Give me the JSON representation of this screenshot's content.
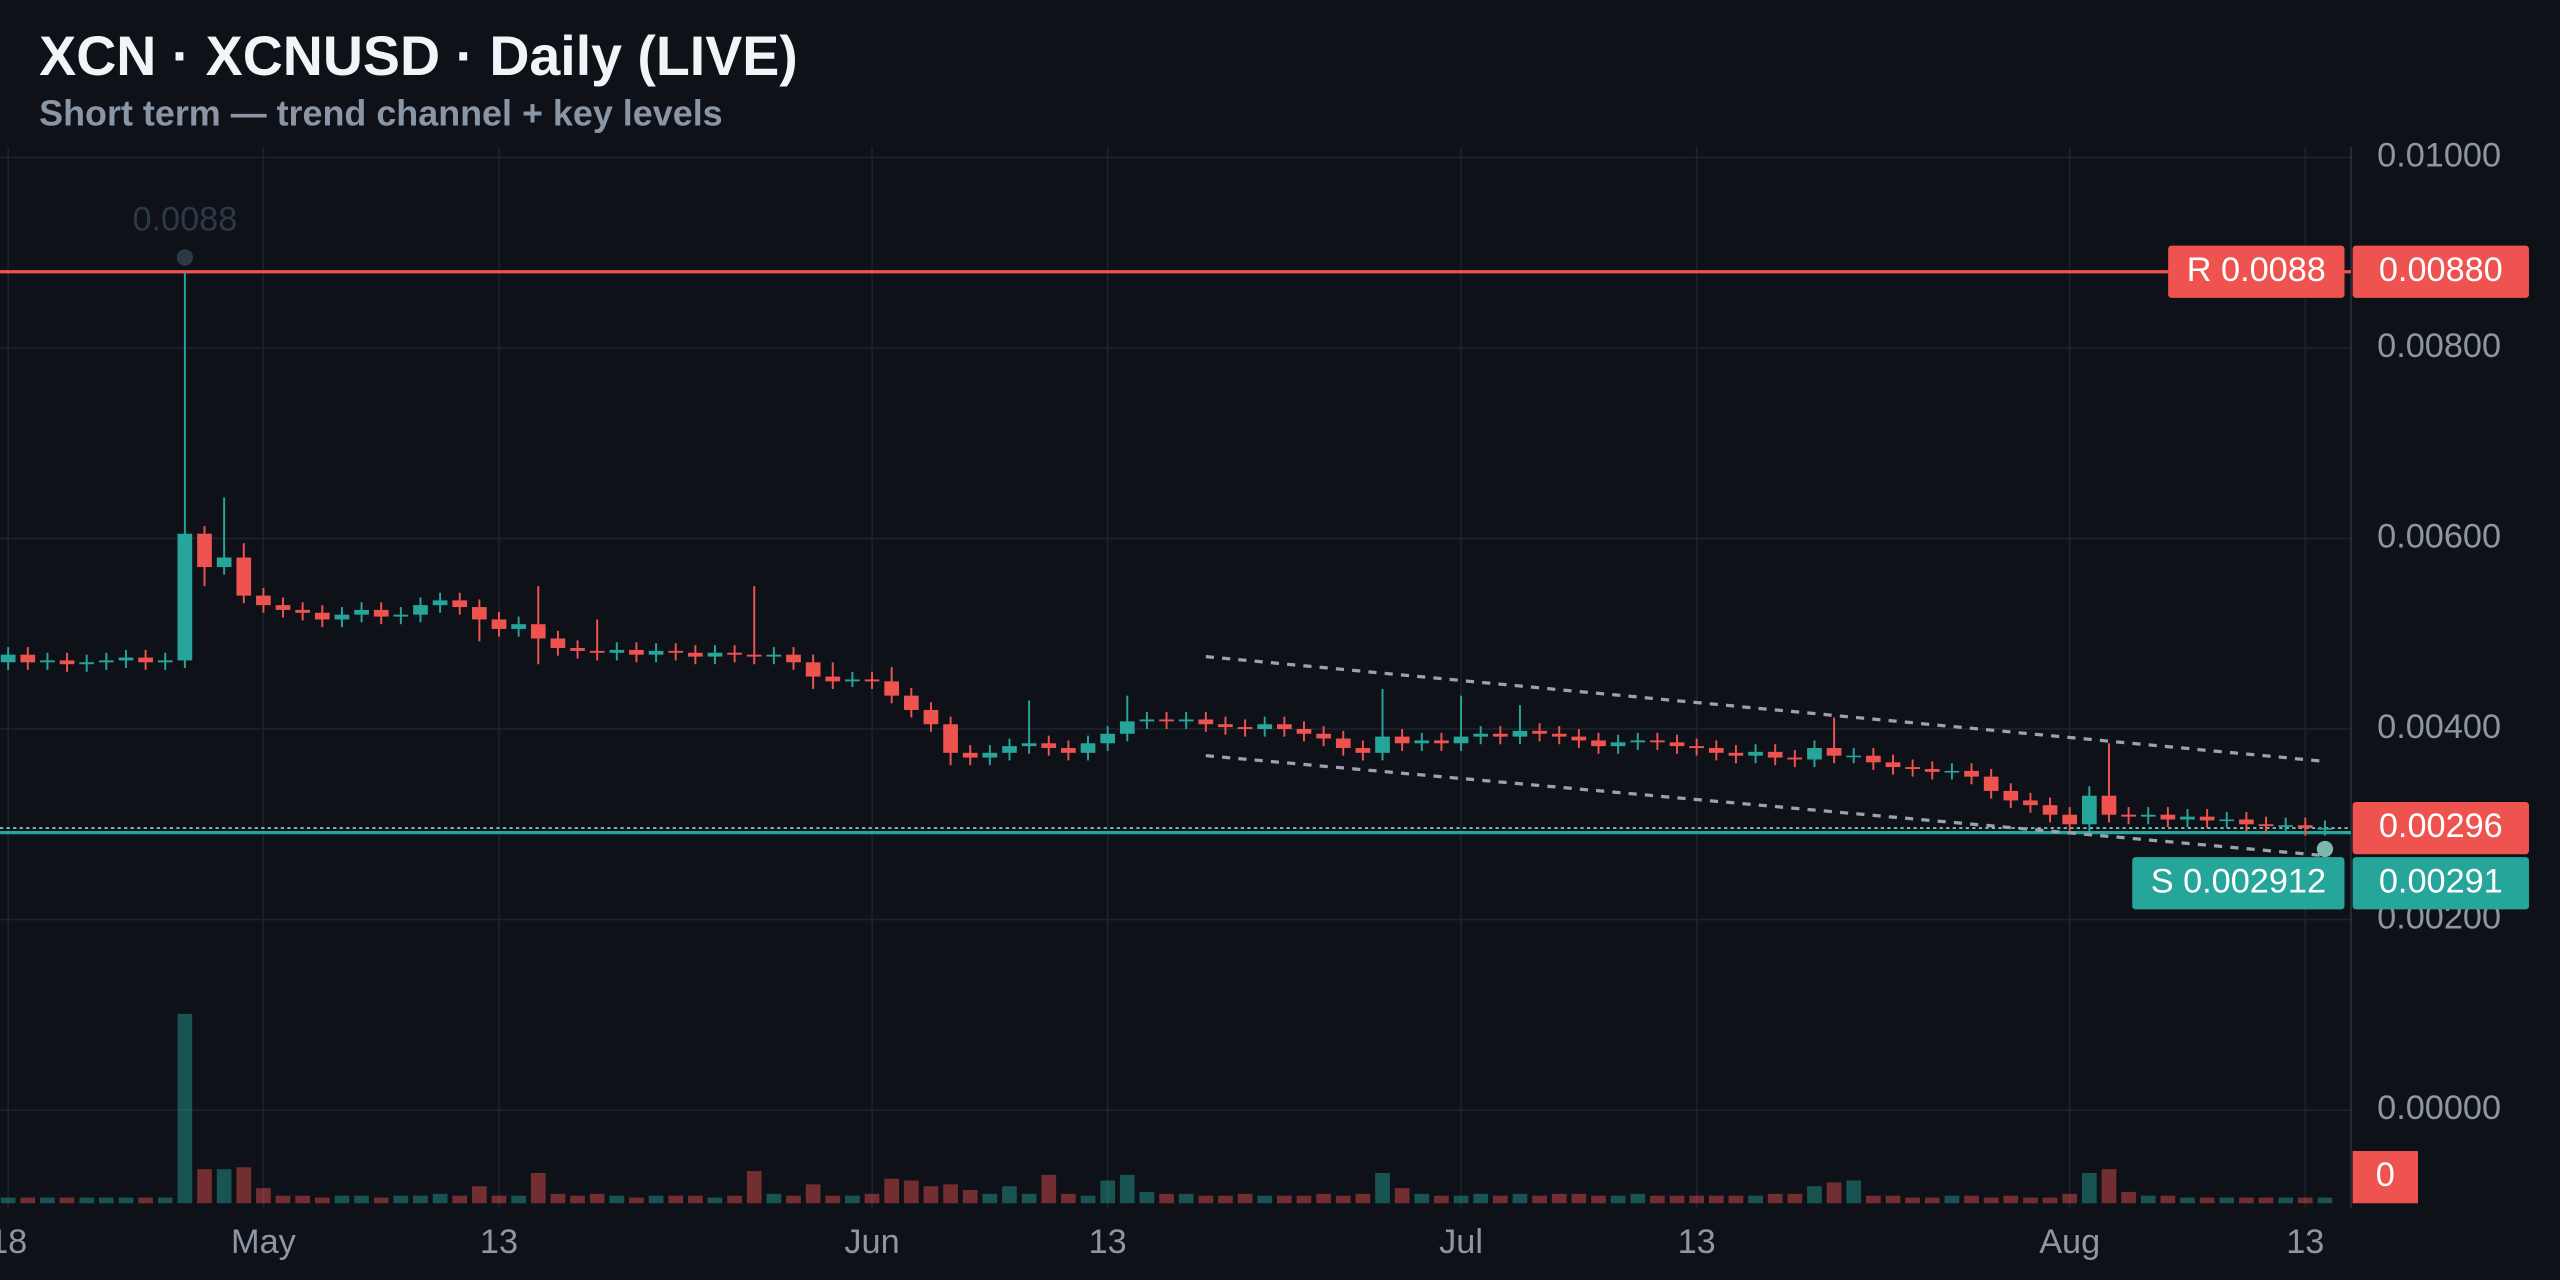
{
  "chart_data": {
    "type": "candlestick",
    "title": "XCN · XCNUSD · Daily (LIVE)",
    "subtitle": "Short term — trend channel + key levels",
    "x": [
      "04-18",
      "04-19",
      "04-20",
      "04-21",
      "04-22",
      "04-23",
      "04-24",
      "04-25",
      "04-26",
      "04-27",
      "04-28",
      "04-29",
      "04-30",
      "05-01",
      "05-02",
      "05-03",
      "05-04",
      "05-05",
      "05-06",
      "05-07",
      "05-08",
      "05-09",
      "05-10",
      "05-11",
      "05-12",
      "05-13",
      "05-14",
      "05-15",
      "05-16",
      "05-17",
      "05-18",
      "05-19",
      "05-20",
      "05-21",
      "05-22",
      "05-23",
      "05-24",
      "05-25",
      "05-26",
      "05-27",
      "05-28",
      "05-29",
      "05-30",
      "05-31",
      "06-01",
      "06-02",
      "06-03",
      "06-04",
      "06-05",
      "06-06",
      "06-07",
      "06-08",
      "06-09",
      "06-10",
      "06-11",
      "06-12",
      "06-13",
      "06-14",
      "06-15",
      "06-16",
      "06-17",
      "06-18",
      "06-19",
      "06-20",
      "06-21",
      "06-22",
      "06-23",
      "06-24",
      "06-25",
      "06-26",
      "06-27",
      "06-28",
      "06-29",
      "06-30",
      "07-01",
      "07-02",
      "07-03",
      "07-04",
      "07-05",
      "07-06",
      "07-07",
      "07-08",
      "07-09",
      "07-10",
      "07-11",
      "07-12",
      "07-13",
      "07-14",
      "07-15",
      "07-16",
      "07-17",
      "07-18",
      "07-19",
      "07-20",
      "07-21",
      "07-22",
      "07-23",
      "07-24",
      "07-25",
      "07-26",
      "07-27",
      "07-28",
      "07-29",
      "07-30",
      "07-31",
      "08-01",
      "08-02",
      "08-03",
      "08-04",
      "08-05",
      "08-06",
      "08-07",
      "08-08",
      "08-09",
      "08-10",
      "08-11",
      "08-12",
      "08-13",
      "08-14"
    ],
    "open": [
      0.0047,
      0.00478,
      0.0047,
      0.00472,
      0.00468,
      0.0047,
      0.00472,
      0.00475,
      0.0047,
      0.00472,
      0.00605,
      0.0057,
      0.0058,
      0.0054,
      0.0053,
      0.00525,
      0.00522,
      0.00515,
      0.0052,
      0.00525,
      0.00518,
      0.0052,
      0.0053,
      0.00535,
      0.00528,
      0.00515,
      0.00505,
      0.0051,
      0.00495,
      0.00485,
      0.00482,
      0.0048,
      0.00483,
      0.00478,
      0.00482,
      0.0048,
      0.00476,
      0.0048,
      0.00478,
      0.00476,
      0.00478,
      0.0047,
      0.00455,
      0.0045,
      0.00452,
      0.0045,
      0.00435,
      0.0042,
      0.00405,
      0.00375,
      0.0037,
      0.00375,
      0.00382,
      0.00385,
      0.0038,
      0.00375,
      0.00385,
      0.00395,
      0.00408,
      0.0041,
      0.00408,
      0.0041,
      0.00405,
      0.00402,
      0.004,
      0.00405,
      0.004,
      0.00395,
      0.0039,
      0.0038,
      0.00375,
      0.00392,
      0.00385,
      0.00388,
      0.00385,
      0.00392,
      0.00395,
      0.00392,
      0.00398,
      0.00395,
      0.00392,
      0.00388,
      0.00382,
      0.00386,
      0.00388,
      0.00386,
      0.00382,
      0.0038,
      0.00375,
      0.00372,
      0.00376,
      0.0037,
      0.00368,
      0.0038,
      0.00372,
      0.00372,
      0.00365,
      0.0036,
      0.00358,
      0.00355,
      0.00356,
      0.0035,
      0.00335,
      0.00325,
      0.0032,
      0.0031,
      0.003,
      0.0033,
      0.0031,
      0.00308,
      0.0031,
      0.00305,
      0.00308,
      0.00304,
      0.00305,
      0.003,
      0.00298,
      0.00299,
      0.00296
    ],
    "high": [
      0.00486,
      0.00486,
      0.0048,
      0.0048,
      0.00478,
      0.0048,
      0.00483,
      0.00483,
      0.0048,
      0.0088,
      0.00613,
      0.00643,
      0.00595,
      0.00548,
      0.00538,
      0.00533,
      0.0053,
      0.00528,
      0.00533,
      0.00533,
      0.00528,
      0.00538,
      0.00543,
      0.00543,
      0.00536,
      0.00523,
      0.00518,
      0.0055,
      0.00503,
      0.00493,
      0.00515,
      0.00491,
      0.00491,
      0.0049,
      0.0049,
      0.00488,
      0.00488,
      0.00488,
      0.0055,
      0.00486,
      0.00486,
      0.00478,
      0.0047,
      0.0046,
      0.0046,
      0.00465,
      0.00443,
      0.00428,
      0.00413,
      0.00383,
      0.00383,
      0.0039,
      0.0043,
      0.00393,
      0.00388,
      0.00393,
      0.00403,
      0.00435,
      0.00418,
      0.00418,
      0.00418,
      0.00418,
      0.00413,
      0.0041,
      0.00413,
      0.00413,
      0.00408,
      0.00403,
      0.00398,
      0.00388,
      0.00442,
      0.004,
      0.00396,
      0.00396,
      0.00435,
      0.00403,
      0.00403,
      0.00425,
      0.00406,
      0.00403,
      0.004,
      0.00396,
      0.00394,
      0.00396,
      0.00396,
      0.00394,
      0.0039,
      0.00388,
      0.00383,
      0.00384,
      0.00384,
      0.00378,
      0.00388,
      0.00412,
      0.0038,
      0.0038,
      0.00373,
      0.00368,
      0.00366,
      0.00364,
      0.00364,
      0.00358,
      0.00343,
      0.00333,
      0.00328,
      0.00318,
      0.0034,
      0.00385,
      0.00318,
      0.00318,
      0.00318,
      0.00316,
      0.00316,
      0.00313,
      0.00313,
      0.00308,
      0.00307,
      0.00307,
      0.00304
    ],
    "low": [
      0.00462,
      0.00462,
      0.00462,
      0.0046,
      0.0046,
      0.00462,
      0.00464,
      0.00462,
      0.00462,
      0.00464,
      0.0055,
      0.00562,
      0.00532,
      0.00522,
      0.00517,
      0.00514,
      0.00507,
      0.00507,
      0.00512,
      0.0051,
      0.0051,
      0.00512,
      0.00522,
      0.0052,
      0.00492,
      0.00497,
      0.00497,
      0.00468,
      0.00477,
      0.00474,
      0.00472,
      0.00472,
      0.0047,
      0.0047,
      0.00472,
      0.00468,
      0.00468,
      0.0047,
      0.00468,
      0.00468,
      0.00462,
      0.00442,
      0.00442,
      0.00444,
      0.00442,
      0.00427,
      0.00412,
      0.00397,
      0.00362,
      0.00362,
      0.00362,
      0.00367,
      0.00374,
      0.00372,
      0.00367,
      0.00367,
      0.00377,
      0.00387,
      0.004,
      0.004,
      0.004,
      0.00397,
      0.00394,
      0.00392,
      0.00392,
      0.00392,
      0.00387,
      0.00382,
      0.00372,
      0.00367,
      0.00367,
      0.00377,
      0.00377,
      0.00377,
      0.00377,
      0.00384,
      0.00384,
      0.00384,
      0.00387,
      0.00384,
      0.0038,
      0.00374,
      0.00374,
      0.00378,
      0.00378,
      0.00374,
      0.00372,
      0.00367,
      0.00364,
      0.00364,
      0.00362,
      0.0036,
      0.0036,
      0.00364,
      0.00364,
      0.00357,
      0.00352,
      0.0035,
      0.00347,
      0.00347,
      0.00342,
      0.00327,
      0.00317,
      0.00312,
      0.00302,
      0.00292,
      0.00292,
      0.00302,
      0.003,
      0.003,
      0.00297,
      0.00297,
      0.00296,
      0.00296,
      0.00292,
      0.0029,
      0.0029,
      0.00288,
      0.00288
    ],
    "close": [
      0.00478,
      0.0047,
      0.00472,
      0.00468,
      0.0047,
      0.00472,
      0.00475,
      0.0047,
      0.00472,
      0.00605,
      0.0057,
      0.0058,
      0.0054,
      0.0053,
      0.00525,
      0.00522,
      0.00515,
      0.0052,
      0.00525,
      0.00518,
      0.0052,
      0.0053,
      0.00535,
      0.00528,
      0.00515,
      0.00505,
      0.0051,
      0.00495,
      0.00485,
      0.00482,
      0.0048,
      0.00483,
      0.00478,
      0.00482,
      0.0048,
      0.00476,
      0.0048,
      0.00478,
      0.00476,
      0.00478,
      0.0047,
      0.00455,
      0.0045,
      0.00452,
      0.0045,
      0.00435,
      0.0042,
      0.00405,
      0.00375,
      0.0037,
      0.00375,
      0.00382,
      0.00385,
      0.0038,
      0.00375,
      0.00385,
      0.00395,
      0.00408,
      0.0041,
      0.00408,
      0.0041,
      0.00405,
      0.00402,
      0.004,
      0.00405,
      0.004,
      0.00395,
      0.0039,
      0.0038,
      0.00375,
      0.00392,
      0.00385,
      0.00388,
      0.00385,
      0.00392,
      0.00395,
      0.00392,
      0.00398,
      0.00395,
      0.00392,
      0.00388,
      0.00382,
      0.00386,
      0.00388,
      0.00386,
      0.00382,
      0.0038,
      0.00375,
      0.00372,
      0.00376,
      0.0037,
      0.00368,
      0.0038,
      0.00372,
      0.00372,
      0.00365,
      0.0036,
      0.00358,
      0.00355,
      0.00356,
      0.0035,
      0.00335,
      0.00325,
      0.0032,
      0.0031,
      0.003,
      0.0033,
      0.0031,
      0.00308,
      0.0031,
      0.00305,
      0.00308,
      0.00304,
      0.00305,
      0.003,
      0.00298,
      0.00299,
      0.00296,
      0.00296
    ],
    "volume": [
      3,
      3,
      3,
      3,
      3,
      3,
      3,
      3,
      3,
      100,
      18,
      18,
      19,
      8,
      4,
      4,
      3,
      4,
      4,
      3,
      4,
      4,
      5,
      4,
      9,
      4,
      4,
      16,
      5,
      4,
      5,
      4,
      3,
      4,
      4,
      4,
      3,
      4,
      17,
      5,
      4,
      10,
      4,
      4,
      5,
      13,
      12,
      9,
      10,
      7,
      5,
      9,
      5,
      15,
      5,
      4,
      12,
      15,
      6,
      5,
      5,
      4,
      4,
      5,
      4,
      4,
      4,
      5,
      4,
      5,
      16,
      8,
      5,
      4,
      4,
      5,
      4,
      5,
      4,
      5,
      5,
      4,
      4,
      5,
      4,
      4,
      4,
      4,
      4,
      4,
      5,
      5,
      9,
      11,
      12,
      4,
      4,
      3,
      3,
      4,
      4,
      3,
      4,
      3,
      3,
      5,
      16,
      18,
      6,
      4,
      4,
      3,
      3,
      3,
      3,
      3,
      3,
      3,
      3
    ],
    "volume_ylim": [
      0,
      100
    ],
    "volume_label": "0",
    "up_color": "#26a69a",
    "down_color": "#ef5350",
    "ylim": [
      -0.00103,
      0.01011
    ],
    "yticks": [
      {
        "value": 0.01,
        "label": "0.01000"
      },
      {
        "value": 0.008,
        "label": "0.00800"
      },
      {
        "value": 0.006,
        "label": "0.00600"
      },
      {
        "value": 0.004,
        "label": "0.00400"
      },
      {
        "value": 0.002,
        "label": "0.00200"
      },
      {
        "value": 0,
        "label": "0.00000"
      }
    ],
    "xticks": [
      {
        "value": "04-18",
        "label": "18"
      },
      {
        "value": "05-01",
        "label": "May"
      },
      {
        "value": "05-13",
        "label": "13"
      },
      {
        "value": "06-01",
        "label": "Jun"
      },
      {
        "value": "06-13",
        "label": "13"
      },
      {
        "value": "07-01",
        "label": "Jul"
      },
      {
        "value": "07-13",
        "label": "13"
      },
      {
        "value": "08-01",
        "label": "Aug"
      },
      {
        "value": "08-13",
        "label": "13"
      }
    ],
    "grid": true,
    "levels": [
      {
        "name": "R 0.0088",
        "value": 0.0088,
        "label": "0.00880",
        "color": "#ef5350"
      },
      {
        "name": "S 0.002912",
        "value": 0.002912,
        "label": "0.00291",
        "color": "#26a69a"
      }
    ],
    "last_price": {
      "value": 0.00296,
      "label": "0.00296",
      "color": "#ef5350"
    },
    "trend_channel": {
      "color": "#9aa3ad",
      "upper": {
        "x": [
          "06-18",
          "08-14"
        ],
        "values": [
          0.00476,
          0.00366
        ]
      },
      "lower": {
        "x": [
          "06-18",
          "08-14"
        ],
        "values": [
          0.00372,
          0.00267
        ]
      }
    },
    "markers": [
      {
        "x": "04-27",
        "value": 0.00895,
        "label": "0.0088"
      },
      {
        "x": "08-14",
        "value": 0.00274
      }
    ]
  }
}
